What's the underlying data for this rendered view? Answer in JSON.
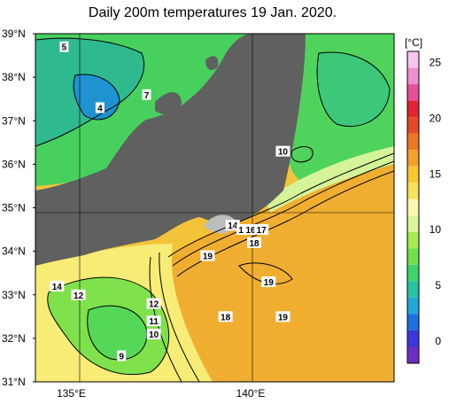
{
  "title": "Daily 200m temperatures 19 Jan. 2020.",
  "map": {
    "lat_labels": [
      "39°N",
      "38°N",
      "37°N",
      "36°N",
      "35°N",
      "34°N",
      "33°N",
      "32°N",
      "31°N"
    ],
    "lon_labels": [
      "135°E",
      "140°E"
    ],
    "lon_range": [
      134,
      144
    ],
    "lat_range": [
      31,
      39
    ]
  },
  "colorbar": {
    "unit": "[°C]",
    "ticks": [
      "25",
      "20",
      "15",
      "10",
      "5",
      "0"
    ],
    "colors": [
      "#6d2fc1",
      "#3b36dd",
      "#1f6fe3",
      "#22a7d6",
      "#25c3a0",
      "#3fd36b",
      "#6fe04a",
      "#a6ea55",
      "#d9f59a",
      "#f9f7b0",
      "#f7e15c",
      "#f6c831",
      "#f2a12a",
      "#ec7827",
      "#e8482a",
      "#e22433",
      "#e65099",
      "#ee8fd3",
      "#f7c6ee"
    ]
  },
  "contour_labels": [
    {
      "text": "5",
      "lon": 134.8,
      "lat": 38.7
    },
    {
      "text": "7",
      "lon": 137.1,
      "lat": 37.6
    },
    {
      "text": "4",
      "lon": 135.8,
      "lat": 37.3
    },
    {
      "text": "10",
      "lon": 140.9,
      "lat": 36.3
    },
    {
      "text": "14",
      "lon": 139.5,
      "lat": 34.6
    },
    {
      "text": "15",
      "lon": 139.8,
      "lat": 34.5
    },
    {
      "text": "16",
      "lon": 140.0,
      "lat": 34.5
    },
    {
      "text": "17",
      "lon": 140.3,
      "lat": 34.5
    },
    {
      "text": "18",
      "lon": 140.1,
      "lat": 34.2
    },
    {
      "text": "19",
      "lon": 138.8,
      "lat": 33.9
    },
    {
      "text": "19",
      "lon": 140.5,
      "lat": 33.3
    },
    {
      "text": "14",
      "lon": 134.6,
      "lat": 33.2
    },
    {
      "text": "12",
      "lon": 135.2,
      "lat": 33.0
    },
    {
      "text": "12",
      "lon": 137.3,
      "lat": 32.8
    },
    {
      "text": "11",
      "lon": 137.3,
      "lat": 32.4
    },
    {
      "text": "10",
      "lon": 137.3,
      "lat": 32.1
    },
    {
      "text": "18",
      "lon": 139.3,
      "lat": 32.5
    },
    {
      "text": "19",
      "lon": 140.9,
      "lat": 32.5
    },
    {
      "text": "9",
      "lon": 136.4,
      "lat": 31.6
    }
  ]
}
